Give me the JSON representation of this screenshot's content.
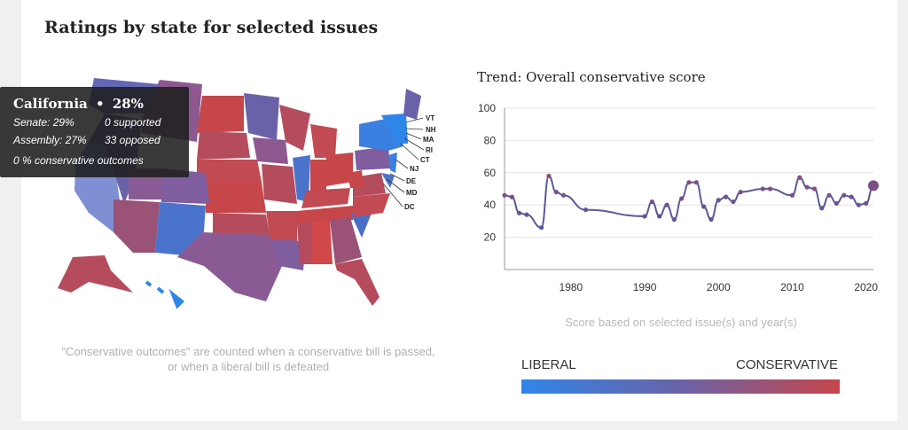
{
  "title": "Ratings by state for selected issues",
  "tooltip": {
    "state": "California",
    "bullet": "•",
    "pct": "28%",
    "senate": "Senate: 29%",
    "supported": "0  supported",
    "assembly": "Assembly: 27%",
    "opposed": "33  opposed",
    "outcomes": "0 % conservative outcomes"
  },
  "map": {
    "state_labels": [
      "VT",
      "NH",
      "MA",
      "RI",
      "CT",
      "NJ",
      "DE",
      "MD",
      "DC"
    ],
    "note_line1": "\"Conservative outcomes\" are counted when a conservative bill is passed,",
    "note_line2": "or when a liberal bill is defeated"
  },
  "colors": {
    "liberal": "#2f86e8",
    "mid": "#6a62a8",
    "conservative": "#c6464a",
    "line": "#5a5a9a",
    "highlight": "#7e8fd4"
  },
  "chart_data": {
    "type": "line",
    "title": "Trend: Overall conservative score",
    "xlabel": "",
    "ylabel": "",
    "xticks": [
      1980,
      1990,
      2000,
      2010,
      2020
    ],
    "yticks": [
      20,
      40,
      60,
      80,
      100
    ],
    "xlim": [
      1971,
      2021
    ],
    "ylim": [
      0,
      100
    ],
    "x": [
      1971,
      1972,
      1973,
      1974,
      1976,
      1977,
      1978,
      1979,
      1982,
      1990,
      1991,
      1992,
      1993,
      1994,
      1995,
      1996,
      1997,
      1998,
      1999,
      2000,
      2001,
      2002,
      2003,
      2006,
      2007,
      2010,
      2011,
      2012,
      2013,
      2014,
      2015,
      2016,
      2017,
      2018,
      2019,
      2020,
      2021
    ],
    "values": [
      46,
      45,
      35,
      34,
      26,
      58,
      48,
      46,
      37,
      33,
      42,
      33,
      40,
      31,
      44,
      54,
      54,
      39,
      31,
      43,
      45,
      42,
      48,
      50,
      50,
      46,
      57,
      51,
      50,
      38,
      46,
      41,
      46,
      45,
      40,
      41,
      52
    ],
    "caption": "Score based on selected issue(s) and year(s)"
  },
  "legend": {
    "left": "LIBERAL",
    "right": "CONSERVATIVE"
  }
}
